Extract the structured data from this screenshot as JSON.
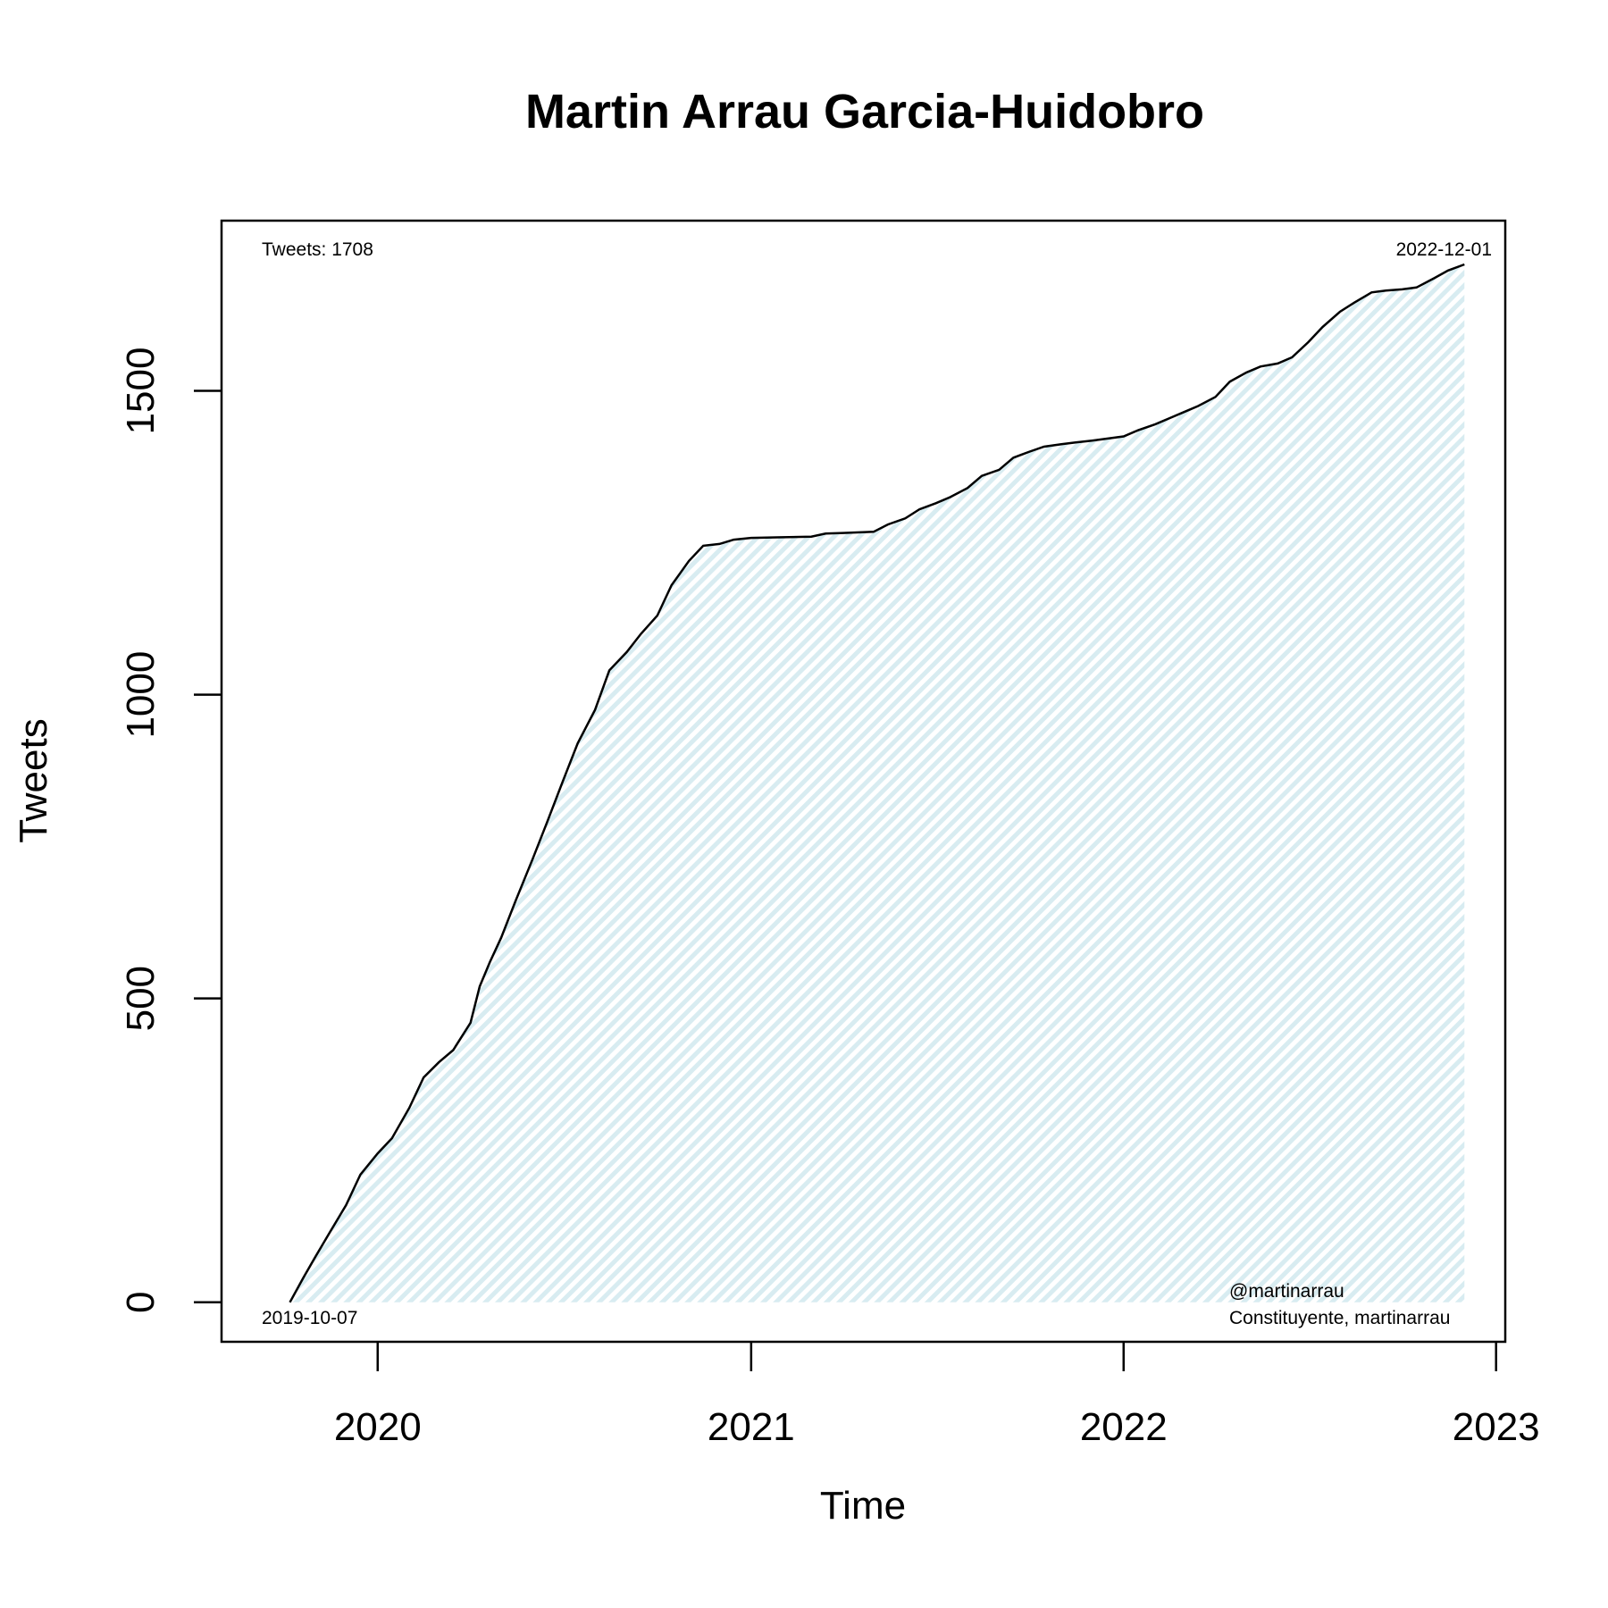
{
  "chart_data": {
    "type": "area",
    "title": "Martin Arrau Garcia-Huidobro",
    "xlabel": "Time",
    "ylabel": "Tweets",
    "xlim": [
      "2019-08-01",
      "2023-01-10"
    ],
    "ylim": [
      -65,
      1780
    ],
    "x_ticks": [
      {
        "date": "2020-01-01",
        "label": "2020"
      },
      {
        "date": "2021-01-01",
        "label": "2021"
      },
      {
        "date": "2022-01-01",
        "label": "2022"
      },
      {
        "date": "2023-01-01",
        "label": "2023"
      }
    ],
    "y_ticks": [
      0,
      500,
      1000,
      1500
    ],
    "annotations": {
      "total": "Tweets: 1708",
      "end_date": "2022-12-01",
      "start_date": "2019-10-07",
      "handle": "@martinarrau",
      "description": "Constituyente, martinarrau"
    },
    "fill_color": "#e6f2f5",
    "line_color": "#000000",
    "grid": false,
    "series": [
      {
        "points": [
          [
            "2019-10-07",
            0
          ],
          [
            "2019-10-20",
            40
          ],
          [
            "2019-11-01",
            75
          ],
          [
            "2019-11-15",
            115
          ],
          [
            "2019-12-01",
            160
          ],
          [
            "2019-12-15",
            210
          ],
          [
            "2020-01-01",
            245
          ],
          [
            "2020-01-15",
            270
          ],
          [
            "2020-02-01",
            320
          ],
          [
            "2020-02-15",
            370
          ],
          [
            "2020-03-01",
            395
          ],
          [
            "2020-03-15",
            415
          ],
          [
            "2020-04-01",
            460
          ],
          [
            "2020-04-10",
            520
          ],
          [
            "2020-04-20",
            560
          ],
          [
            "2020-05-01",
            600
          ],
          [
            "2020-05-15",
            660
          ],
          [
            "2020-06-01",
            730
          ],
          [
            "2020-06-15",
            790
          ],
          [
            "2020-07-01",
            860
          ],
          [
            "2020-07-15",
            920
          ],
          [
            "2020-08-01",
            975
          ],
          [
            "2020-08-15",
            1040
          ],
          [
            "2020-09-01",
            1070
          ],
          [
            "2020-09-15",
            1100
          ],
          [
            "2020-10-01",
            1130
          ],
          [
            "2020-10-15",
            1180
          ],
          [
            "2020-11-01",
            1220
          ],
          [
            "2020-11-15",
            1245
          ],
          [
            "2020-12-01",
            1248
          ],
          [
            "2020-12-15",
            1255
          ],
          [
            "2021-01-01",
            1258
          ],
          [
            "2021-02-01",
            1259
          ],
          [
            "2021-03-01",
            1260
          ],
          [
            "2021-03-15",
            1265
          ],
          [
            "2021-04-01",
            1266
          ],
          [
            "2021-05-01",
            1268
          ],
          [
            "2021-05-15",
            1280
          ],
          [
            "2021-06-01",
            1290
          ],
          [
            "2021-06-15",
            1305
          ],
          [
            "2021-07-01",
            1315
          ],
          [
            "2021-07-15",
            1325
          ],
          [
            "2021-08-01",
            1340
          ],
          [
            "2021-08-15",
            1360
          ],
          [
            "2021-09-01",
            1370
          ],
          [
            "2021-09-15",
            1390
          ],
          [
            "2021-10-01",
            1400
          ],
          [
            "2021-10-15",
            1408
          ],
          [
            "2021-11-01",
            1412
          ],
          [
            "2021-11-15",
            1415
          ],
          [
            "2021-12-01",
            1418
          ],
          [
            "2022-01-01",
            1425
          ],
          [
            "2022-01-15",
            1435
          ],
          [
            "2022-02-01",
            1445
          ],
          [
            "2022-02-15",
            1455
          ],
          [
            "2022-03-01",
            1465
          ],
          [
            "2022-03-15",
            1475
          ],
          [
            "2022-04-01",
            1490
          ],
          [
            "2022-04-15",
            1515
          ],
          [
            "2022-05-01",
            1530
          ],
          [
            "2022-05-15",
            1540
          ],
          [
            "2022-06-01",
            1545
          ],
          [
            "2022-06-15",
            1555
          ],
          [
            "2022-07-01",
            1580
          ],
          [
            "2022-07-15",
            1605
          ],
          [
            "2022-08-01",
            1630
          ],
          [
            "2022-08-15",
            1645
          ],
          [
            "2022-09-01",
            1662
          ],
          [
            "2022-09-15",
            1665
          ],
          [
            "2022-10-01",
            1667
          ],
          [
            "2022-10-15",
            1670
          ],
          [
            "2022-11-01",
            1685
          ],
          [
            "2022-11-15",
            1698
          ],
          [
            "2022-12-01",
            1708
          ]
        ]
      }
    ]
  }
}
